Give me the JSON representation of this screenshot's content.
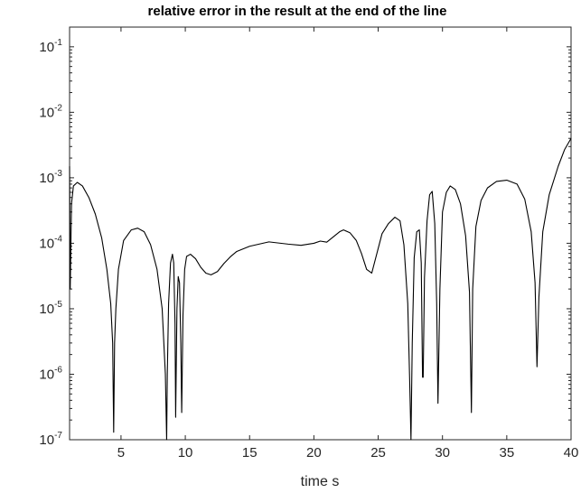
{
  "chart_data": {
    "type": "line",
    "title": "relative error in the result at the end of the line",
    "xlabel": "time s",
    "ylabel": "",
    "xlim": [
      1,
      40
    ],
    "ylim": [
      1e-07,
      0.2
    ],
    "yscale": "log",
    "grid": false,
    "legend": "none",
    "line_color": "#000000",
    "xticks": [
      {
        "value": 5,
        "label": "5"
      },
      {
        "value": 10,
        "label": "10"
      },
      {
        "value": 15,
        "label": "15"
      },
      {
        "value": 20,
        "label": "20"
      },
      {
        "value": 25,
        "label": "25"
      },
      {
        "value": 30,
        "label": "30"
      },
      {
        "value": 35,
        "label": "35"
      },
      {
        "value": 40,
        "label": "40"
      }
    ],
    "yticks": [
      {
        "value": 1e-07,
        "base": "10",
        "exp": "-7"
      },
      {
        "value": 1e-06,
        "base": "10",
        "exp": "-6"
      },
      {
        "value": 1e-05,
        "base": "10",
        "exp": "-5"
      },
      {
        "value": 0.0001,
        "base": "10",
        "exp": "-4"
      },
      {
        "value": 0.001,
        "base": "10",
        "exp": "-3"
      },
      {
        "value": 0.01,
        "base": "10",
        "exp": "-2"
      },
      {
        "value": 0.1,
        "base": "10",
        "exp": "-1"
      }
    ],
    "series": [
      {
        "x": [
          1.0,
          1.05,
          1.15,
          1.3,
          1.6,
          2.0,
          2.5,
          3.0,
          3.5,
          3.9,
          4.2,
          4.35,
          4.43,
          4.5,
          4.6,
          4.8,
          5.2,
          5.8,
          6.3,
          6.8,
          7.3,
          7.8,
          8.2,
          8.45,
          8.55,
          8.6,
          8.7,
          8.85,
          9.0,
          9.1,
          9.2,
          9.25,
          9.35,
          9.45,
          9.55,
          9.65,
          9.72,
          9.82,
          9.95,
          10.1,
          10.4,
          10.8,
          11.2,
          11.6,
          12.0,
          12.5,
          13.0,
          13.5,
          14.0,
          15.0,
          16.5,
          18.0,
          19.0,
          20.0,
          20.5,
          21.0,
          21.5,
          22.0,
          22.3,
          22.8,
          23.3,
          23.7,
          24.1,
          24.5,
          24.9,
          25.3,
          25.8,
          26.3,
          26.7,
          27.0,
          27.3,
          27.45,
          27.55,
          27.65,
          27.8,
          28.0,
          28.2,
          28.35,
          28.45,
          28.5,
          28.6,
          28.8,
          29.0,
          29.2,
          29.4,
          29.55,
          29.65,
          29.8,
          30.0,
          30.3,
          30.6,
          31.0,
          31.4,
          31.8,
          32.1,
          32.25,
          32.35,
          32.6,
          33.0,
          33.5,
          34.2,
          35.0,
          35.8,
          36.4,
          36.9,
          37.2,
          37.35,
          37.5,
          37.8,
          38.3,
          39.0,
          39.5,
          40.0
        ],
        "y": [
          0.0015,
          2e-05,
          0.0004,
          0.00075,
          0.00085,
          0.00075,
          0.0005,
          0.00028,
          0.00012,
          4e-05,
          1.2e-05,
          3e-06,
          1.3e-07,
          3e-06,
          1e-05,
          4e-05,
          0.00011,
          0.00016,
          0.00017,
          0.00015,
          9.5e-05,
          4e-05,
          1e-05,
          1e-06,
          1e-07,
          1e-06,
          1.2e-05,
          5e-05,
          6.8e-05,
          5e-05,
          6e-06,
          2.2e-07,
          1e-05,
          3.1e-05,
          2.5e-05,
          3e-06,
          2.6e-07,
          8e-06,
          4e-05,
          6.3e-05,
          6.8e-05,
          5.8e-05,
          4.3e-05,
          3.5e-05,
          3.3e-05,
          3.7e-05,
          4.9e-05,
          6.2e-05,
          7.5e-05,
          9e-05,
          0.000105,
          9.7e-05,
          9.3e-05,
          0.0001,
          0.000108,
          0.000104,
          0.000125,
          0.00015,
          0.00016,
          0.000145,
          0.00011,
          7e-05,
          4e-05,
          3.5e-05,
          7e-05,
          0.00014,
          0.0002,
          0.00025,
          0.00022,
          9.5e-05,
          1.2e-05,
          8e-07,
          1e-07,
          3e-06,
          6e-05,
          0.00015,
          0.00016,
          5e-05,
          9e-07,
          9e-07,
          3e-05,
          0.00022,
          0.00055,
          0.00062,
          0.0002,
          1.2e-05,
          3.6e-07,
          2e-05,
          0.0003,
          0.0006,
          0.00075,
          0.00066,
          0.0004,
          0.00013,
          1.8e-05,
          2.6e-07,
          2e-05,
          0.00018,
          0.00045,
          0.0007,
          0.00088,
          0.00092,
          0.0008,
          0.00047,
          0.00015,
          2.5e-05,
          1.3e-06,
          1.5e-05,
          0.00015,
          0.00055,
          0.0015,
          0.0027,
          0.004
        ]
      }
    ]
  }
}
